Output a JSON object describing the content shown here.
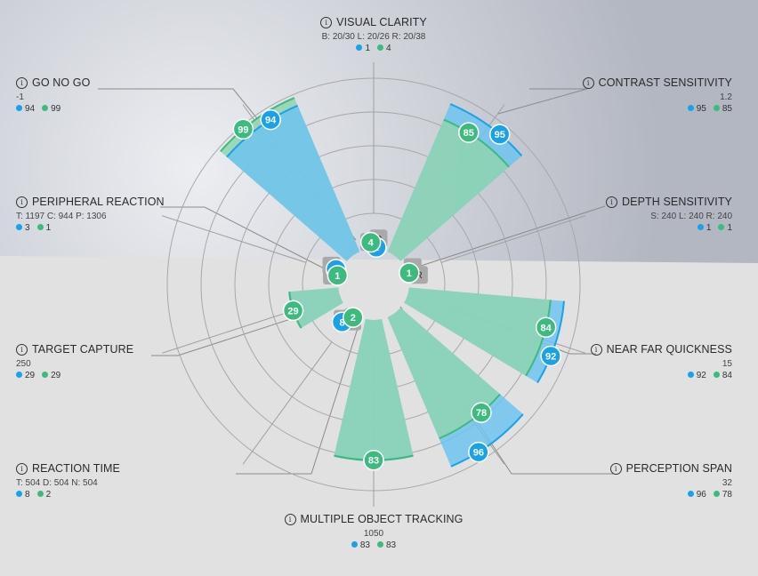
{
  "colors": {
    "series_blue": "#1aa2e8",
    "series_green": "#3dbb7e",
    "fill_blue": "#6ec3ee",
    "fill_green": "#8fd3b0"
  },
  "chart_data": {
    "type": "polar-area",
    "r_range": [
      0,
      100
    ],
    "grid": true,
    "series": [
      {
        "color": "#1aa2e8"
      },
      {
        "color": "#3dbb7e"
      }
    ],
    "categories": [
      {
        "key": "visual_clarity",
        "name": "VISUAL CLARITY",
        "detail": "B: 20/30 L: 20/26 R: 20/38",
        "blue": 1,
        "green": 4,
        "markers": [
          "L",
          "R"
        ]
      },
      {
        "key": "contrast_sensitivity",
        "name": "CONTRAST SENSITIVITY",
        "detail": "1.2",
        "blue": 95,
        "green": 85,
        "markers": []
      },
      {
        "key": "depth_sensitivity",
        "name": "DEPTH SENSITIVITY",
        "detail": "S: 240 L: 240 R: 240",
        "blue": 1,
        "green": 1,
        "markers": [
          "L",
          "R"
        ]
      },
      {
        "key": "near_far_quickness",
        "name": "NEAR FAR QUICKNESS",
        "detail": "15",
        "blue": 92,
        "green": 84,
        "markers": []
      },
      {
        "key": "perception_span",
        "name": "PERCEPTION SPAN",
        "detail": "32",
        "blue": 96,
        "green": 78,
        "markers": []
      },
      {
        "key": "multiple_object_tracking",
        "name": "MULTIPLE OBJECT TRACKING",
        "detail": "1050",
        "blue": 83,
        "green": 83,
        "markers": []
      },
      {
        "key": "reaction_time",
        "name": "REACTION TIME",
        "detail": "T: 504 D: 504 N: 504",
        "blue": 8,
        "green": 2,
        "markers": [
          "D",
          "N"
        ]
      },
      {
        "key": "target_capture",
        "name": "TARGET CAPTURE",
        "detail": "250",
        "blue": 29,
        "green": 29,
        "markers": []
      },
      {
        "key": "peripheral_reaction",
        "name": "PERIPHERAL REACTION",
        "detail": "T: 1197 C: 944 P: 1306",
        "blue": 3,
        "green": 1,
        "markers": [
          "C",
          "P"
        ]
      },
      {
        "key": "go_no_go",
        "name": "GO NO GO",
        "detail": "-1",
        "blue": 94,
        "green": 99,
        "markers": []
      }
    ]
  }
}
